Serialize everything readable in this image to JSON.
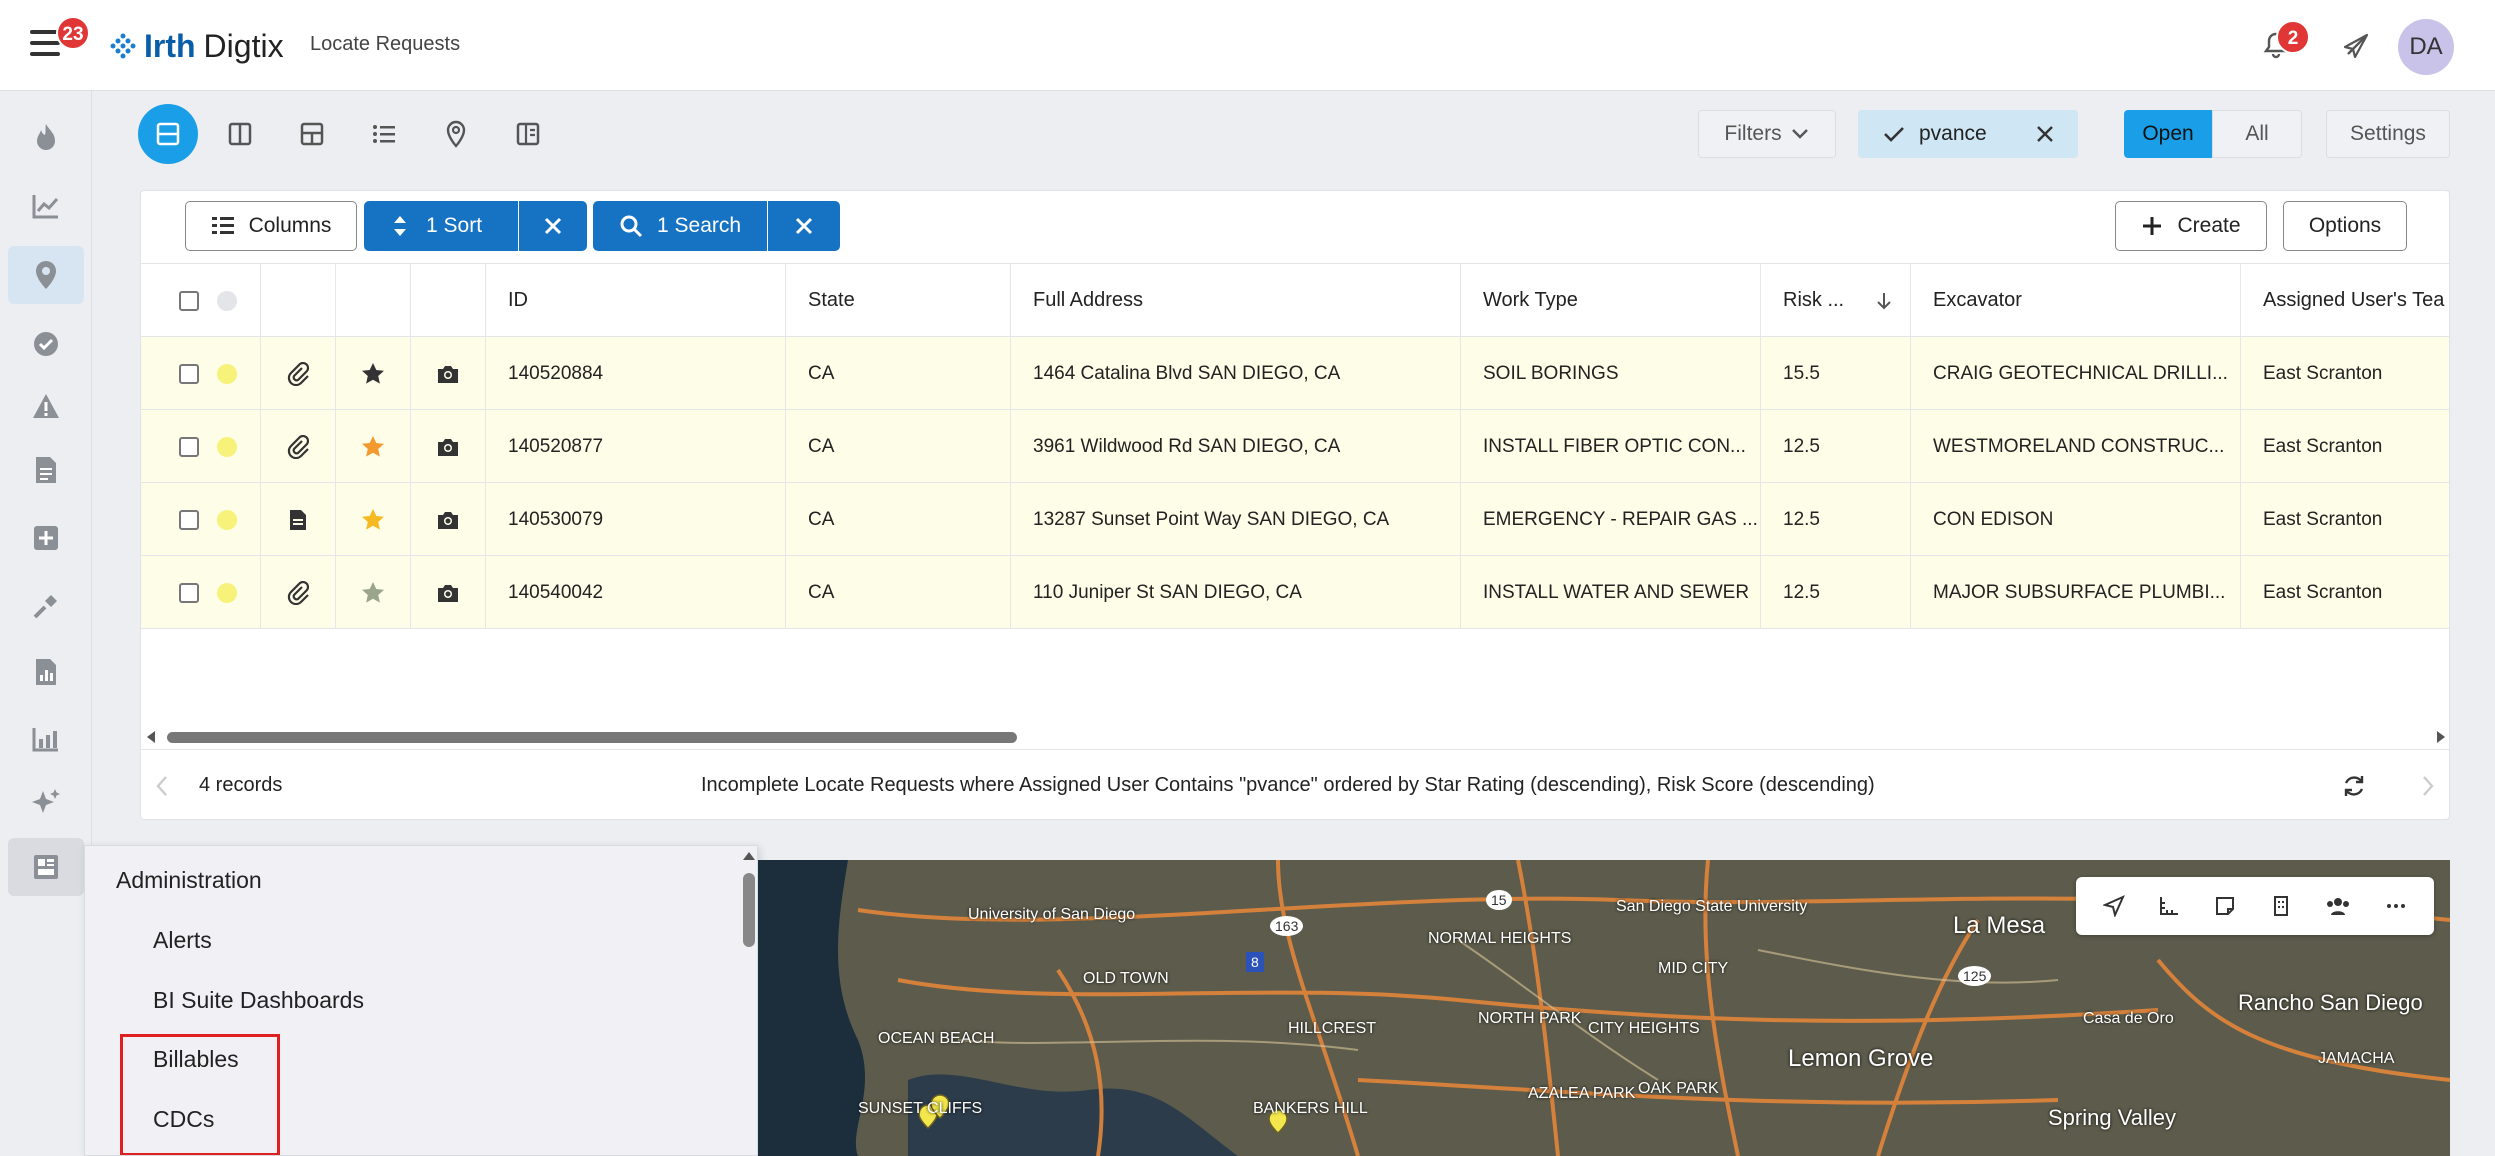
{
  "header": {
    "menu_badge": "23",
    "brand_part1": "Irth",
    "brand_part2": "Digtix",
    "app_title": "Locate Requests",
    "notification_badge": "2",
    "avatar_initials": "DA"
  },
  "toolbar": {
    "filters_label": "Filters",
    "user_filter": "pvance",
    "open_label": "Open",
    "all_label": "All",
    "settings_label": "Settings"
  },
  "table_toolbar": {
    "columns_label": "Columns",
    "sort_label": "1 Sort",
    "search_label": "1 Search",
    "create_label": "Create",
    "options_label": "Options"
  },
  "table": {
    "headers": [
      "ID",
      "State",
      "Full Address",
      "Work Type",
      "Risk ...",
      "Excavator",
      "Assigned User's Tea"
    ],
    "rows": [
      {
        "id": "140520884",
        "state": "CA",
        "address": "1464 Catalina Blvd SAN DIEGO, CA",
        "work_type": "SOIL BORINGS",
        "risk": "15.5",
        "excavator": "CRAIG GEOTECHNICAL DRILLI...",
        "team": "East Scranton",
        "doc_icon": "paperclip-icon",
        "star_color": "#333333"
      },
      {
        "id": "140520877",
        "state": "CA",
        "address": "3961 Wildwood Rd SAN DIEGO, CA",
        "work_type": "INSTALL FIBER OPTIC CON...",
        "risk": "12.5",
        "excavator": "WESTMORELAND CONSTRUC...",
        "team": "East Scranton",
        "doc_icon": "paperclip-icon",
        "star_color": "#f39a2e"
      },
      {
        "id": "140530079",
        "state": "CA",
        "address": "13287 Sunset Point Way SAN DIEGO, CA",
        "work_type": "EMERGENCY - REPAIR GAS ...",
        "risk": "12.5",
        "excavator": "CON EDISON",
        "team": "East Scranton",
        "doc_icon": "document-icon",
        "star_color": "#f5b921"
      },
      {
        "id": "140540042",
        "state": "CA",
        "address": "110 Juniper St SAN DIEGO, CA",
        "work_type": "INSTALL WATER AND SEWER",
        "risk": "12.5",
        "excavator": "MAJOR SUBSURFACE PLUMBI...",
        "team": "East Scranton",
        "doc_icon": "paperclip-icon",
        "star_color": "#9aa58a"
      }
    ]
  },
  "footer": {
    "records": "4 records",
    "description": "Incomplete Locate Requests where Assigned User Contains \"pvance\" ordered by Star Rating (descending), Risk Score (descending)"
  },
  "admin_menu": {
    "title": "Administration",
    "items": [
      "Alerts",
      "BI Suite Dashboards",
      "Billables",
      "CDCs"
    ]
  },
  "map": {
    "labels": [
      "University of San Diego",
      "San Diego State University",
      "La Mesa",
      "NORMAL HEIGHTS",
      "MID CITY",
      "OLD TOWN",
      "OCEAN BEACH",
      "HILLCREST",
      "NORTH PARK",
      "CITY HEIGHTS",
      "Lemon Grove",
      "Rancho San Diego",
      "Casa de Oro",
      "JAMACHA",
      "Spring Valley",
      "SUNSET CLIFFS",
      "BANKERS HILL",
      "OAK PARK",
      "AZALEA PARK",
      "163",
      "15",
      "8",
      "125"
    ]
  },
  "colors": {
    "accent": "#1a9ee8",
    "primary_button": "#1672c2",
    "row_bg": "#fefde8",
    "status_dot": "#f7f27a",
    "badge": "#e03636"
  }
}
